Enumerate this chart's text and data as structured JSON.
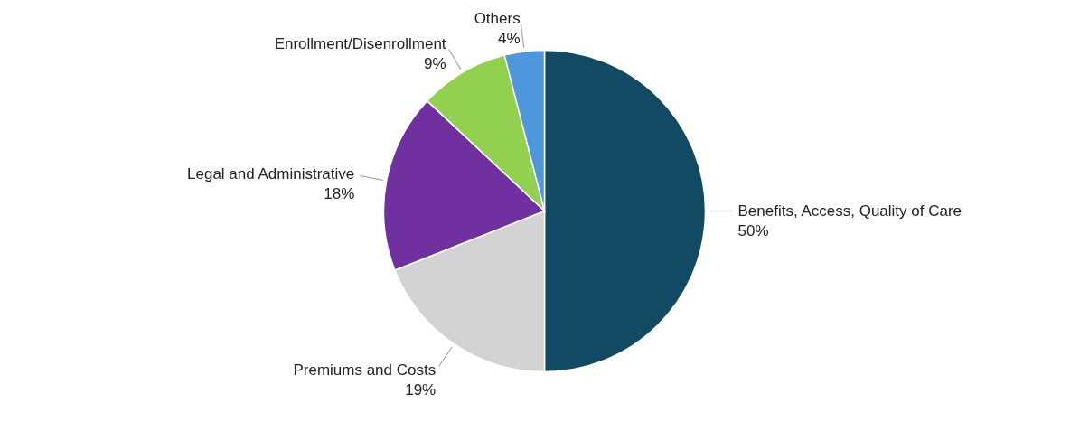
{
  "chart_data": {
    "type": "pie",
    "categories": [
      "Benefits, Access, Quality of Care",
      "Premiums and Costs",
      "Legal and Administrative",
      "Enrollment/Disenrollment",
      "Others"
    ],
    "values": [
      50,
      19,
      18,
      9,
      4
    ],
    "value_labels": [
      "50%",
      "19%",
      "18%",
      "9%",
      "4%"
    ],
    "colors": [
      "#134a63",
      "#d3d3d3",
      "#7030a0",
      "#92d050",
      "#4f97dc"
    ]
  }
}
